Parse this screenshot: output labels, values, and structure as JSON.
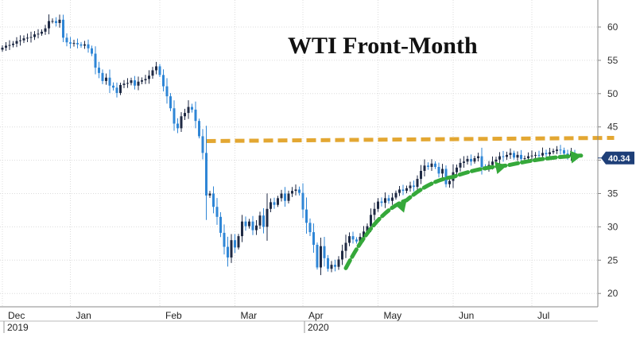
{
  "chart_data": {
    "type": "candlestick",
    "title": "WTI Front-Month",
    "xlabel": "",
    "ylabel": "",
    "ylim": [
      18,
      64
    ],
    "y_ticks": [
      20,
      25,
      30,
      35,
      40,
      45,
      50,
      55,
      60
    ],
    "x_ticks": [
      "Dec",
      "Jan",
      "Feb",
      "Mar",
      "Apr",
      "May",
      "Jun",
      "Jul"
    ],
    "x_tick_positions": [
      0,
      19,
      44,
      65,
      84,
      105,
      126,
      148
    ],
    "year_labels": [
      "2019",
      "2020"
    ],
    "year_label_positions": [
      0,
      84
    ],
    "last_price": "40.34",
    "grid": true,
    "colors": {
      "up_candle": "#1f2a44",
      "down_candle": "#2f86d6",
      "resistance_line": "#e3a732",
      "trend_arrow": "#35a83a",
      "price_tag_bg": "#1e3f78"
    },
    "resistance_line": {
      "y": 43,
      "x_start": 57,
      "x_end": 171
    },
    "trend_arrow": [
      [
        96,
        23.8
      ],
      [
        113,
        34
      ],
      [
        126,
        37.5
      ],
      [
        141,
        39.2
      ],
      [
        162,
        40.7
      ]
    ],
    "close": [
      56.9,
      57.2,
      57.3,
      57.5,
      57.9,
      58.0,
      58.3,
      58.4,
      58.5,
      58.9,
      59.0,
      59.3,
      59.8,
      60.9,
      60.9,
      60.6,
      61.1,
      58.4,
      57.7,
      57.5,
      57.6,
      57.4,
      57.2,
      57.4,
      56.8,
      56.0,
      53.9,
      53.1,
      51.9,
      52.4,
      51.2,
      50.9,
      50.1,
      51.3,
      51.5,
      51.6,
      52.0,
      51.2,
      51.8,
      52.0,
      52.2,
      52.7,
      53.5,
      54.1,
      52.8,
      51.1,
      49.6,
      47.8,
      45.5,
      44.8,
      46.6,
      47.1,
      48.0,
      47.6,
      45.9,
      43.6,
      41.1,
      34.7,
      35.0,
      33.0,
      31.5,
      29.1,
      27.0,
      25.4,
      28.0,
      26.9,
      28.6,
      30.8,
      30.1,
      30.8,
      29.5,
      30.2,
      31.7,
      30.0,
      32.7,
      33.7,
      33.3,
      34.3,
      35.0,
      33.9,
      35.0,
      35.4,
      35.6,
      35.1,
      32.6,
      30.6,
      29.2,
      27.3,
      23.9,
      27.1,
      25.3,
      23.7,
      24.3,
      24.0,
      25.1,
      26.4,
      27.6,
      28.6,
      28.1,
      27.8,
      28.5,
      29.3,
      30.1,
      31.8,
      32.7,
      33.8,
      33.6,
      34.3,
      33.9,
      34.4,
      35.1,
      35.6,
      35.4,
      35.8,
      36.2,
      36.0,
      37.2,
      38.4,
      39.2,
      39.0,
      39.5,
      39.0,
      38.0,
      38.7,
      36.4,
      36.9,
      38.2,
      38.9,
      39.6,
      39.8,
      40.2,
      39.8,
      40.3,
      40.6,
      39.0,
      38.8,
      39.3,
      39.8,
      40.1,
      40.6,
      40.5,
      40.8,
      41.1,
      40.4,
      40.8,
      40.2,
      40.3,
      40.6,
      40.7,
      40.8,
      40.7,
      41.1,
      40.9,
      41.2,
      41.4,
      41.6,
      41.5,
      41.0,
      40.6,
      41.1,
      40.3
    ]
  }
}
